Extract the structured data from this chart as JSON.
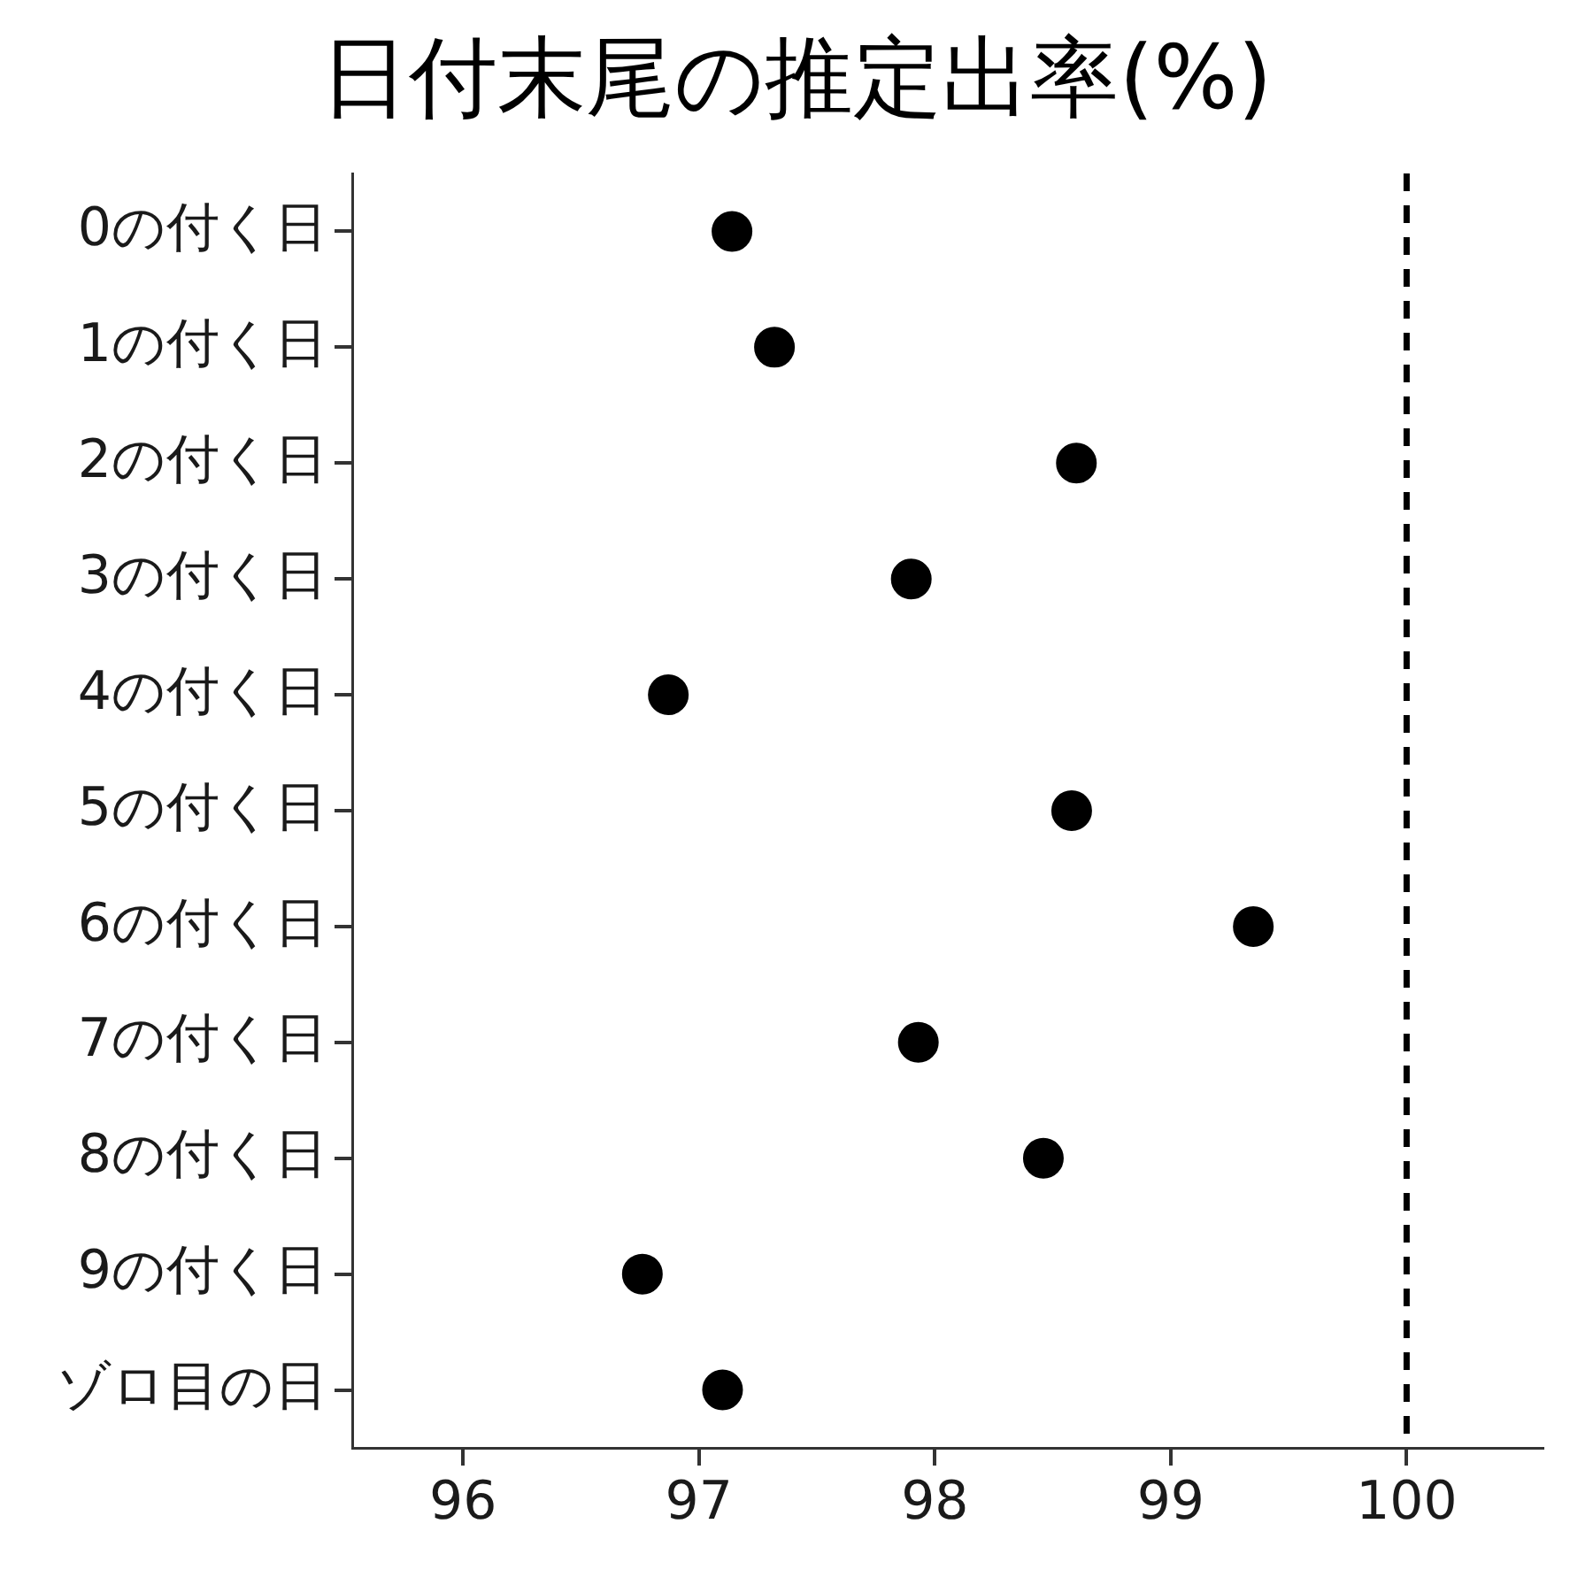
{
  "chart_data": {
    "type": "scatter",
    "orientation": "horizontal",
    "title": "日付末尾の推定出率(%)",
    "categories": [
      "0の付く日",
      "1の付く日",
      "2の付く日",
      "3の付く日",
      "4の付く日",
      "5の付く日",
      "6の付く日",
      "7の付く日",
      "8の付く日",
      "9の付く日",
      "ゾロ目の日"
    ],
    "series": [
      {
        "color": "#000000",
        "values": [
          97.14,
          97.32,
          98.6,
          97.9,
          96.87,
          98.58,
          99.35,
          97.93,
          98.46,
          96.76,
          97.1
        ]
      }
    ],
    "xlim": [
      95.53,
      100.58
    ],
    "xticks": [
      96,
      97,
      98,
      99,
      100
    ],
    "ref_lines": [
      {
        "axis": "x",
        "value": 100,
        "color": "#000000",
        "line_style": "dashed"
      }
    ],
    "marker": "circle",
    "grid": false,
    "legend": false
  }
}
